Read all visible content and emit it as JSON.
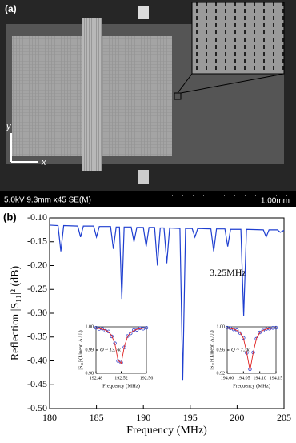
{
  "image": {
    "label": "(a)",
    "axis_y": "y",
    "axis_x": "x",
    "info": "5.0kV 9.3mm x45 SE(M)",
    "scale": "1.00mm"
  },
  "chart_data": [
    {
      "type": "line",
      "panel_label": "(b)",
      "x_label": "Frequency (MHz)",
      "y_label": "Reflection |S₁₁|² (dB)",
      "annotation": "3.25MHz",
      "xlim": [
        180,
        205
      ],
      "xticks": [
        180,
        185,
        190,
        195,
        200,
        205
      ],
      "ylim": [
        -0.5,
        -0.1
      ],
      "yticks": [
        {
          "value": -0.5,
          "label": "-0.50"
        },
        {
          "value": -0.45,
          "label": "-0.45"
        },
        {
          "value": -0.4,
          "label": "-0.40"
        },
        {
          "value": -0.35,
          "label": "-0.35"
        },
        {
          "value": -0.3,
          "label": "-0.30"
        },
        {
          "value": -0.25,
          "label": "-0.25"
        },
        {
          "value": -0.2,
          "label": "-0.20"
        },
        {
          "value": -0.15,
          "label": "-0.15"
        },
        {
          "value": -0.1,
          "label": "-0.10"
        }
      ],
      "x": [
        180,
        180.9,
        181.2,
        181.5,
        183.0,
        183.3,
        183.6,
        184.7,
        185.0,
        185.3,
        186.5,
        186.8,
        187.1,
        187.45,
        187.7,
        187.95,
        188.7,
        189.0,
        189.3,
        190.0,
        190.3,
        190.6,
        191.2,
        191.5,
        191.8,
        192.2,
        192.5,
        192.8,
        193.9,
        194.2,
        194.5,
        195.2,
        195.5,
        195.8,
        197.2,
        197.5,
        197.8,
        198.7,
        199.0,
        199.3,
        200.4,
        200.7,
        201.0,
        202.8,
        203.1,
        203.4,
        204.3,
        204.6,
        205
      ],
      "series": [
        {
          "color": "#1f3fd0",
          "values": [
            -0.115,
            -0.116,
            -0.17,
            -0.116,
            -0.117,
            -0.14,
            -0.117,
            -0.117,
            -0.14,
            -0.118,
            -0.118,
            -0.165,
            -0.119,
            -0.119,
            -0.27,
            -0.119,
            -0.119,
            -0.15,
            -0.12,
            -0.12,
            -0.16,
            -0.12,
            -0.12,
            -0.2,
            -0.121,
            -0.121,
            -0.195,
            -0.121,
            -0.122,
            -0.44,
            -0.122,
            -0.122,
            -0.14,
            -0.122,
            -0.123,
            -0.17,
            -0.123,
            -0.123,
            -0.16,
            -0.124,
            -0.124,
            -0.305,
            -0.124,
            -0.125,
            -0.14,
            -0.125,
            -0.125,
            -0.13,
            -0.126
          ]
        }
      ]
    },
    {
      "type": "line",
      "x_label": "Frequency (MHz)",
      "y_label": "|S₁₁|²(Linear, A.U.)",
      "annotation": "Q ~ 13.7k",
      "xlim": [
        192.48,
        192.56
      ],
      "xticks": [
        192.48,
        192.52,
        192.56
      ],
      "ylim": [
        0.98,
        1.0
      ],
      "yticks": [
        0.98,
        0.99,
        {
          "value": 1.0,
          "label": "1.00"
        }
      ],
      "x": [
        192.48,
        192.485,
        192.49,
        192.495,
        192.5,
        192.505,
        192.51,
        192.515,
        192.52,
        192.525,
        192.53,
        192.535,
        192.54,
        192.545,
        192.55,
        192.555,
        192.56
      ],
      "series": [
        {
          "color": "#3344cc",
          "marker": "circle",
          "values": [
            0.9996,
            0.9991,
            0.9992,
            0.9983,
            0.998,
            0.9959,
            0.9929,
            0.9853,
            0.9846,
            0.9912,
            0.996,
            0.9972,
            0.9986,
            0.9987,
            0.9994,
            0.9992,
            0.9996
          ]
        },
        {
          "color": "#e02020",
          "values": [
            0.9994,
            0.9993,
            0.999,
            0.9986,
            0.9978,
            0.9962,
            0.9926,
            0.9856,
            0.9843,
            0.9915,
            0.9957,
            0.9975,
            0.9984,
            0.9989,
            0.9992,
            0.9994,
            0.9995
          ]
        }
      ]
    },
    {
      "type": "line",
      "x_label": "Frequency (MHz)",
      "y_label": "|S₁₁|²(Linear, A.U.)",
      "annotation": "Q ~ 7.3k",
      "xlim": [
        194.0,
        194.15
      ],
      "xticks": [
        {
          "value": 194.0,
          "label": "194.00"
        },
        194.05,
        {
          "value": 194.1,
          "label": "194.10"
        },
        194.15
      ],
      "ylim": [
        0.92,
        1.0
      ],
      "yticks": [
        0.92,
        0.96,
        {
          "value": 1.0,
          "label": "1.00"
        }
      ],
      "x": [
        194.0,
        194.01,
        194.02,
        194.03,
        194.04,
        194.05,
        194.06,
        194.07,
        194.08,
        194.09,
        194.1,
        194.11,
        194.12,
        194.13,
        194.14,
        194.15
      ],
      "series": [
        {
          "color": "#3344cc",
          "marker": "circle",
          "values": [
            0.9985,
            0.9975,
            0.9955,
            0.9942,
            0.989,
            0.981,
            0.955,
            0.927,
            0.956,
            0.9795,
            0.9902,
            0.9935,
            0.9962,
            0.9968,
            0.9982,
            0.9986
          ]
        },
        {
          "color": "#e02020",
          "values": [
            0.9979,
            0.9971,
            0.9959,
            0.9938,
            0.9897,
            0.9802,
            0.9556,
            0.925,
            0.9556,
            0.9802,
            0.9897,
            0.9938,
            0.9959,
            0.9971,
            0.9979,
            0.9983
          ]
        }
      ]
    }
  ]
}
